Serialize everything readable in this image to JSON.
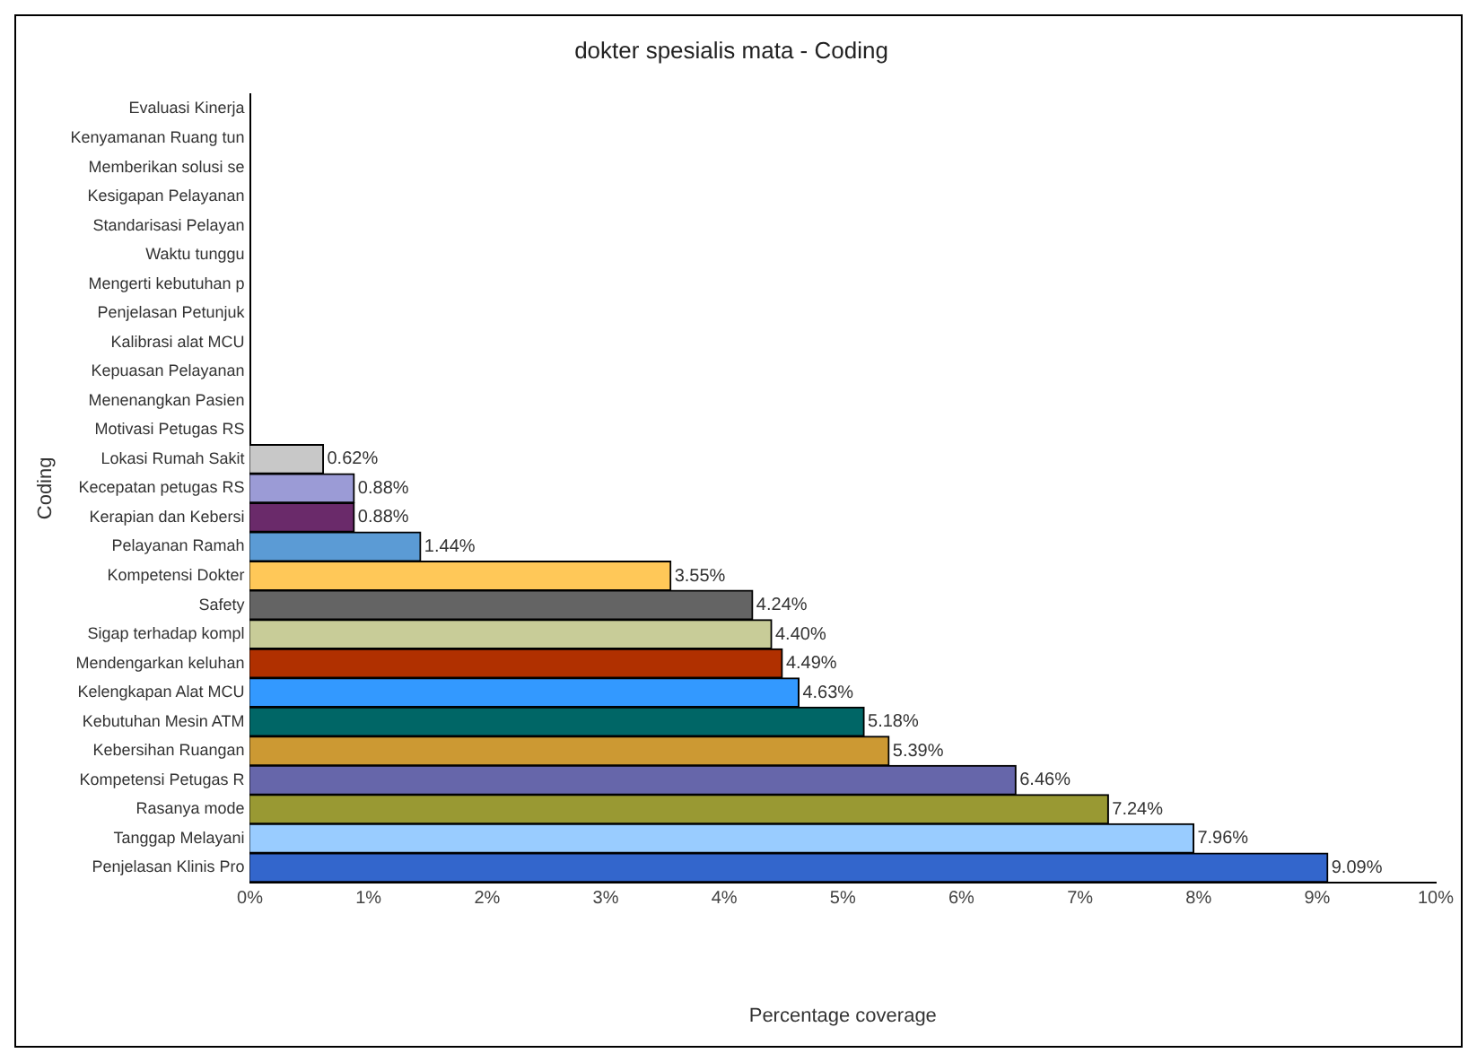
{
  "chart_data": {
    "type": "bar",
    "orientation": "horizontal",
    "title": "dokter spesialis mata - Coding",
    "xlabel": "Percentage coverage",
    "ylabel": "Coding",
    "categories": [
      "Evaluasi Kinerja",
      "Kenyamanan Ruang tun",
      "Memberikan solusi se",
      "Kesigapan Pelayanan",
      "Standarisasi Pelayan",
      "Waktu tunggu",
      "Mengerti kebutuhan p",
      "Penjelasan Petunjuk",
      "Kalibrasi alat MCU",
      "Kepuasan Pelayanan",
      "Menenangkan Pasien",
      "Motivasi Petugas RS",
      "Lokasi Rumah Sakit",
      "Kecepatan petugas RS",
      "Kerapian dan Kebersi",
      "Pelayanan Ramah",
      "Kompetensi Dokter",
      "Safety",
      "Sigap terhadap kompl",
      "Mendengarkan keluhan",
      "Kelengkapan Alat MCU",
      "Kebutuhan Mesin ATM",
      "Kebersihan Ruangan",
      "Kompetensi Petugas R",
      "Rasanya mode",
      "Tanggap Melayani",
      "Penjelasan Klinis Pro"
    ],
    "values": [
      0,
      0,
      0,
      0,
      0,
      0,
      0,
      0,
      0,
      0,
      0,
      0,
      0.62,
      0.88,
      0.88,
      1.44,
      3.55,
      4.24,
      4.4,
      4.49,
      4.63,
      5.18,
      5.39,
      6.46,
      7.24,
      7.96,
      9.09
    ],
    "value_labels": [
      null,
      null,
      null,
      null,
      null,
      null,
      null,
      null,
      null,
      null,
      null,
      null,
      "0.62%",
      "0.88%",
      "0.88%",
      "1.44%",
      "3.55%",
      "4.24%",
      "4.40%",
      "4.49%",
      "4.63%",
      "5.18%",
      "5.39%",
      "6.46%",
      "7.24%",
      "7.96%",
      "9.09%"
    ],
    "colors": [
      "#c8c8c8",
      "#c8c8c8",
      "#c8c8c8",
      "#c8c8c8",
      "#c8c8c8",
      "#c8c8c8",
      "#c8c8c8",
      "#c8c8c8",
      "#c8c8c8",
      "#c8c8c8",
      "#c8c8c8",
      "#c8c8c8",
      "#c8c8c8",
      "#9b9bd6",
      "#6a2a6a",
      "#5b9bd5",
      "#ffc858",
      "#646464",
      "#c8cc98",
      "#b03000",
      "#3399ff",
      "#006666",
      "#cc9933",
      "#6666aa",
      "#999933",
      "#99ccff",
      "#3366cc"
    ],
    "xlim": [
      0,
      10
    ],
    "xticks": [
      {
        "value": 0,
        "label": "0%"
      },
      {
        "value": 1,
        "label": "1%"
      },
      {
        "value": 2,
        "label": "2%"
      },
      {
        "value": 3,
        "label": "3%"
      },
      {
        "value": 4,
        "label": "4%"
      },
      {
        "value": 5,
        "label": "5%"
      },
      {
        "value": 6,
        "label": "6%"
      },
      {
        "value": 7,
        "label": "7%"
      },
      {
        "value": 8,
        "label": "8%"
      },
      {
        "value": 9,
        "label": "9%"
      },
      {
        "value": 10,
        "label": "10%"
      }
    ],
    "grid": false,
    "legend": false
  }
}
